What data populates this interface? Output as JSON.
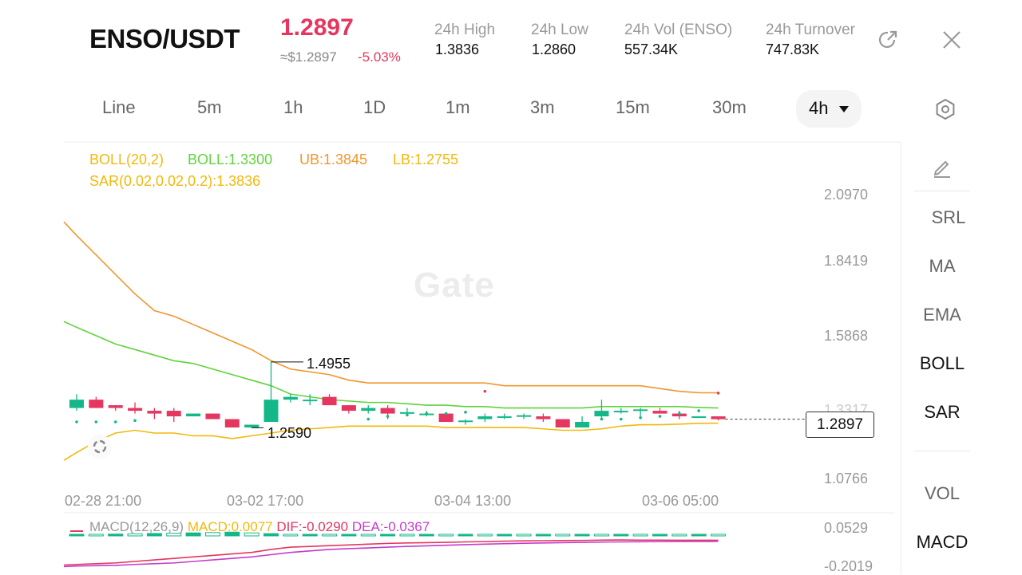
{
  "header": {
    "pair": "ENSO/USDT",
    "last_price": "1.2897",
    "usd_price": "≈$1.2897",
    "change": "-5.03%",
    "stats": [
      {
        "label": "24h  High",
        "value": "1.3836"
      },
      {
        "label": "24h  Low",
        "value": "1.2860"
      },
      {
        "label": "24h  Vol (ENSO)",
        "value": "557.34K"
      },
      {
        "label": "24h  Turnover",
        "value": "747.83K"
      }
    ]
  },
  "tabs": [
    "Line",
    "5m",
    "1h",
    "1D",
    "1m",
    "3m",
    "15m",
    "30m"
  ],
  "active_tab": "4h",
  "indicators": {
    "boll_params": "BOLL(20,2)",
    "boll_mid": "BOLL:1.3300",
    "boll_ub": "UB:1.3845",
    "boll_lb": "LB:1.2755",
    "sar": "SAR(0.02,0.02,0.2):1.3836"
  },
  "sidebar": [
    "SRL",
    "MA",
    "EMA",
    "BOLL",
    "SAR",
    "VOL",
    "MACD"
  ],
  "watermark": "Gate",
  "y_axis_labels": [
    "2.0970",
    "1.8419",
    "1.5868",
    "1.3317",
    "1.0766"
  ],
  "x_axis_labels": [
    "02-28 21:00",
    "03-02 17:00",
    "03-04 13:00",
    "03-06 05:00"
  ],
  "last_price_tag": "1.2897",
  "annotations": {
    "high": "1.4955",
    "low": "1.2590"
  },
  "macd": {
    "label": "MACD(12,26,9)",
    "macd": "MACD:0.0077",
    "dif": "DIF:-0.0290",
    "dea": "DEA:-0.0367",
    "y_labels": [
      "0.0529",
      "-0.2019"
    ]
  },
  "colors": {
    "up": "#14b888",
    "down": "#e5365f",
    "boll_params": "#f1b90b",
    "boll_mid": "#5fd33c",
    "boll_ub": "#f0962e",
    "boll_lb": "#f1b90b",
    "sar": "#f1b90b",
    "macd_dif": "#e5365f",
    "macd_dea": "#c23dc9"
  },
  "chart_data": {
    "type": "candlestick",
    "y_range": [
      1.0766,
      2.097
    ],
    "candles": [
      {
        "o": 1.33,
        "h": 1.38,
        "l": 1.32,
        "c": 1.36
      },
      {
        "o": 1.36,
        "h": 1.37,
        "l": 1.33,
        "c": 1.33
      },
      {
        "o": 1.34,
        "h": 1.34,
        "l": 1.32,
        "c": 1.33
      },
      {
        "o": 1.33,
        "h": 1.35,
        "l": 1.31,
        "c": 1.32
      },
      {
        "o": 1.32,
        "h": 1.33,
        "l": 1.29,
        "c": 1.31
      },
      {
        "o": 1.32,
        "h": 1.33,
        "l": 1.28,
        "c": 1.3
      },
      {
        "o": 1.3,
        "h": 1.31,
        "l": 1.3,
        "c": 1.31
      },
      {
        "o": 1.31,
        "h": 1.31,
        "l": 1.29,
        "c": 1.29
      },
      {
        "o": 1.29,
        "h": 1.29,
        "l": 1.26,
        "c": 1.26
      },
      {
        "o": 1.26,
        "h": 1.27,
        "l": 1.259,
        "c": 1.27
      },
      {
        "o": 1.28,
        "h": 1.4955,
        "l": 1.28,
        "c": 1.36
      },
      {
        "o": 1.36,
        "h": 1.38,
        "l": 1.35,
        "c": 1.37
      },
      {
        "o": 1.36,
        "h": 1.38,
        "l": 1.34,
        "c": 1.36
      },
      {
        "o": 1.37,
        "h": 1.38,
        "l": 1.34,
        "c": 1.34
      },
      {
        "o": 1.34,
        "h": 1.34,
        "l": 1.31,
        "c": 1.32
      },
      {
        "o": 1.32,
        "h": 1.34,
        "l": 1.31,
        "c": 1.33
      },
      {
        "o": 1.33,
        "h": 1.34,
        "l": 1.29,
        "c": 1.31
      },
      {
        "o": 1.31,
        "h": 1.33,
        "l": 1.3,
        "c": 1.315
      },
      {
        "o": 1.31,
        "h": 1.32,
        "l": 1.3,
        "c": 1.31
      },
      {
        "o": 1.31,
        "h": 1.31,
        "l": 1.28,
        "c": 1.28
      },
      {
        "o": 1.28,
        "h": 1.29,
        "l": 1.27,
        "c": 1.285
      },
      {
        "o": 1.29,
        "h": 1.31,
        "l": 1.28,
        "c": 1.3
      },
      {
        "o": 1.3,
        "h": 1.31,
        "l": 1.29,
        "c": 1.3
      },
      {
        "o": 1.3,
        "h": 1.31,
        "l": 1.29,
        "c": 1.304
      },
      {
        "o": 1.3,
        "h": 1.31,
        "l": 1.28,
        "c": 1.29
      },
      {
        "o": 1.29,
        "h": 1.29,
        "l": 1.26,
        "c": 1.26
      },
      {
        "o": 1.26,
        "h": 1.3,
        "l": 1.26,
        "c": 1.28
      },
      {
        "o": 1.3,
        "h": 1.36,
        "l": 1.29,
        "c": 1.32
      },
      {
        "o": 1.32,
        "h": 1.33,
        "l": 1.31,
        "c": 1.32
      },
      {
        "o": 1.32,
        "h": 1.33,
        "l": 1.3,
        "c": 1.325
      },
      {
        "o": 1.32,
        "h": 1.33,
        "l": 1.31,
        "c": 1.31
      },
      {
        "o": 1.31,
        "h": 1.32,
        "l": 1.29,
        "c": 1.3
      },
      {
        "o": 1.3,
        "h": 1.3,
        "l": 1.295,
        "c": 1.3
      },
      {
        "o": 1.3,
        "h": 1.3,
        "l": 1.285,
        "c": 1.2897
      }
    ],
    "boll_upper": [
      1.95,
      1.88,
      1.81,
      1.74,
      1.68,
      1.66,
      1.63,
      1.6,
      1.57,
      1.54,
      1.5,
      1.47,
      1.46,
      1.45,
      1.43,
      1.42,
      1.42,
      1.42,
      1.42,
      1.42,
      1.42,
      1.42,
      1.41,
      1.41,
      1.41,
      1.41,
      1.41,
      1.41,
      1.41,
      1.41,
      1.4,
      1.39,
      1.385,
      1.3845
    ],
    "boll_mid": [
      1.62,
      1.59,
      1.56,
      1.54,
      1.52,
      1.5,
      1.49,
      1.47,
      1.45,
      1.43,
      1.41,
      1.38,
      1.37,
      1.36,
      1.355,
      1.35,
      1.35,
      1.345,
      1.34,
      1.34,
      1.335,
      1.335,
      1.33,
      1.33,
      1.33,
      1.33,
      1.33,
      1.335,
      1.335,
      1.335,
      1.335,
      1.335,
      1.332,
      1.33
    ],
    "boll_lower": [
      1.17,
      1.21,
      1.24,
      1.25,
      1.24,
      1.24,
      1.23,
      1.23,
      1.22,
      1.23,
      1.24,
      1.25,
      1.255,
      1.26,
      1.265,
      1.265,
      1.265,
      1.265,
      1.265,
      1.26,
      1.26,
      1.26,
      1.26,
      1.26,
      1.255,
      1.25,
      1.25,
      1.255,
      1.265,
      1.27,
      1.27,
      1.272,
      1.275,
      1.2755
    ],
    "sar": [
      1.28,
      1.28,
      1.28,
      1.285,
      null,
      null,
      null,
      null,
      null,
      null,
      null,
      null,
      null,
      null,
      null,
      1.29,
      1.3,
      1.305,
      1.31,
      1.31,
      1.315,
      1.39,
      null,
      null,
      null,
      null,
      null,
      1.29,
      1.29,
      1.295,
      1.3,
      1.31,
      1.32,
      1.3836
    ],
    "sar_above": [
      false,
      false,
      false,
      false,
      false,
      true,
      true,
      false,
      false,
      false,
      false,
      false,
      false,
      false,
      false,
      false,
      false,
      false,
      false,
      false,
      false,
      true,
      true,
      true,
      true,
      true,
      true,
      false,
      false,
      false,
      false,
      false,
      false,
      true
    ],
    "macd_dif": [
      -0.19,
      -0.185,
      -0.18,
      -0.17,
      -0.16,
      -0.15,
      -0.14,
      -0.13,
      -0.12,
      -0.11,
      -0.09,
      -0.075,
      -0.07,
      -0.065,
      -0.06,
      -0.055,
      -0.05,
      -0.047,
      -0.045,
      -0.043,
      -0.04,
      -0.038,
      -0.035,
      -0.033,
      -0.032,
      -0.031,
      -0.03,
      -0.028,
      -0.027,
      -0.028,
      -0.028,
      -0.029,
      -0.029,
      -0.029
    ],
    "macd_dea": [
      -0.2,
      -0.198,
      -0.196,
      -0.19,
      -0.185,
      -0.18,
      -0.17,
      -0.16,
      -0.15,
      -0.14,
      -0.125,
      -0.11,
      -0.1,
      -0.09,
      -0.085,
      -0.08,
      -0.075,
      -0.07,
      -0.066,
      -0.062,
      -0.058,
      -0.055,
      -0.052,
      -0.049,
      -0.047,
      -0.045,
      -0.043,
      -0.041,
      -0.04,
      -0.039,
      -0.038,
      -0.037,
      -0.037,
      -0.0367
    ],
    "macd_hist": [
      0.008,
      0.01,
      0.012,
      0.014,
      0.016,
      0.018,
      0.02,
      0.022,
      0.025,
      0.02,
      0.015,
      0.01,
      0.008,
      0.006,
      0.005,
      0.005,
      0.005,
      0.006,
      0.006,
      0.006,
      0.007,
      0.007,
      0.008,
      0.008,
      0.008,
      0.008,
      0.009,
      0.009,
      0.009,
      0.009,
      0.008,
      0.008,
      0.008,
      0.0077
    ]
  }
}
